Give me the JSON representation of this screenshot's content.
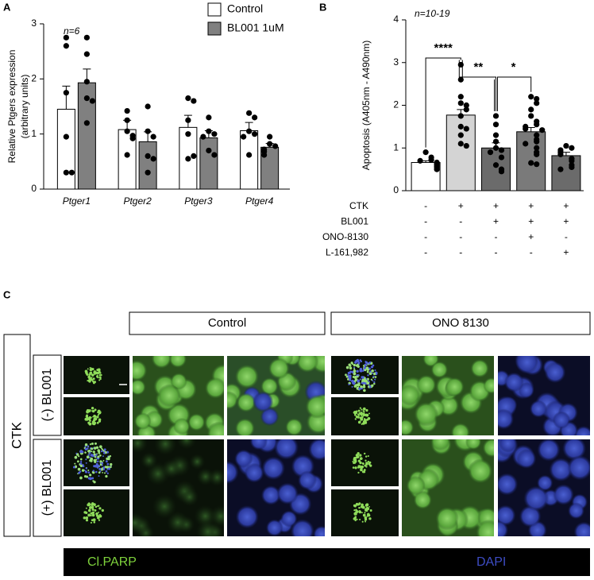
{
  "panel_labels": [
    "A",
    "B",
    "C"
  ],
  "chart_data": [
    {
      "type": "bar",
      "annotation": "n=6",
      "ylabel": [
        "Relative Ptgers expression",
        "(arbitrary units)"
      ],
      "categories": [
        "Ptger1",
        "Ptger2",
        "Ptger3",
        "Ptger4"
      ],
      "ylim": [
        0,
        3
      ],
      "yticks": [
        0,
        1,
        2,
        3
      ],
      "series": [
        {
          "name": "Control",
          "color": "#ffffff",
          "values": [
            1.45,
            1.08,
            1.12,
            1.06
          ],
          "errors": [
            0.42,
            0.17,
            0.22,
            0.15
          ],
          "points": [
            [
              2.75,
              2.6,
              1.75,
              0.95,
              0.3,
              0.3
            ],
            [
              1.42,
              1.25,
              1.05,
              0.97,
              0.92,
              0.62
            ],
            [
              1.65,
              1.6,
              1.25,
              1.0,
              0.55,
              0.6
            ],
            [
              1.38,
              1.3,
              1.05,
              1.0,
              0.95,
              0.62
            ]
          ]
        },
        {
          "name": "BL001 1uM",
          "color": "#808080",
          "values": [
            1.93,
            0.86,
            0.93,
            0.76
          ],
          "errors": [
            0.25,
            0.18,
            0.13,
            0.07
          ],
          "points": [
            [
              2.75,
              2.45,
              1.95,
              1.65,
              1.6,
              1.2
            ],
            [
              1.5,
              1.05,
              0.95,
              0.6,
              0.55,
              0.3
            ],
            [
              1.3,
              1.05,
              1.0,
              0.95,
              0.7,
              0.62
            ],
            [
              0.95,
              0.82,
              0.78,
              0.72,
              0.68,
              0.62
            ]
          ]
        }
      ]
    },
    {
      "type": "bar",
      "annotation": "n=10-19",
      "ylabel": [
        "Apoptosis (A405nm - A490nm)"
      ],
      "ylim": [
        0,
        4
      ],
      "yticks": [
        0,
        1,
        2,
        3,
        4
      ],
      "values": [
        0.66,
        1.77,
        1.0,
        1.38,
        0.82
      ],
      "errors": [
        0.04,
        0.13,
        0.12,
        0.1,
        0.08
      ],
      "colors": [
        "#ffffff",
        "#d4d4d4",
        "#6b6b6b",
        "#7a7a7a",
        "#6b6b6b"
      ],
      "points": [
        [
          0.9,
          0.78,
          0.72,
          0.7,
          0.66,
          0.62,
          0.58,
          0.55,
          0.5
        ],
        [
          2.95,
          2.6,
          2.2,
          2.05,
          2.0,
          1.9,
          1.75,
          1.5,
          1.45,
          1.3,
          1.1,
          1.05
        ],
        [
          1.75,
          1.55,
          1.3,
          1.15,
          1.0,
          0.95,
          0.9,
          0.78,
          0.6,
          0.5,
          0.45
        ],
        [
          2.2,
          2.15,
          2.05,
          1.9,
          1.75,
          1.62,
          1.55,
          1.5,
          1.45,
          1.42,
          1.3,
          1.2,
          1.15,
          1.1,
          1.0,
          0.9,
          0.85,
          0.65,
          0.62
        ],
        [
          1.05,
          1.0,
          0.95,
          0.9,
          0.85,
          0.75,
          0.7,
          0.6,
          0.55,
          0.5
        ]
      ],
      "significance": [
        "****",
        "**",
        "*"
      ],
      "conditions": [
        {
          "name": "CTK",
          "marks": [
            "-",
            "+",
            "+",
            "+",
            "+"
          ]
        },
        {
          "name": "BL001",
          "marks": [
            "-",
            "-",
            "+",
            "+",
            "+"
          ]
        },
        {
          "name": "ONO-8130",
          "marks": [
            "-",
            "-",
            "-",
            "+",
            "-"
          ]
        },
        {
          "name": "L-161,982",
          "marks": [
            "-",
            "-",
            "-",
            "-",
            "+"
          ]
        }
      ]
    }
  ],
  "image_panel": {
    "columns": [
      "Control",
      "ONO 8130"
    ],
    "treatment": "CTK",
    "rows": [
      "(-) BL001",
      "(+) BL001"
    ],
    "channels": [
      "Cl.PARP",
      "DAPI"
    ]
  }
}
